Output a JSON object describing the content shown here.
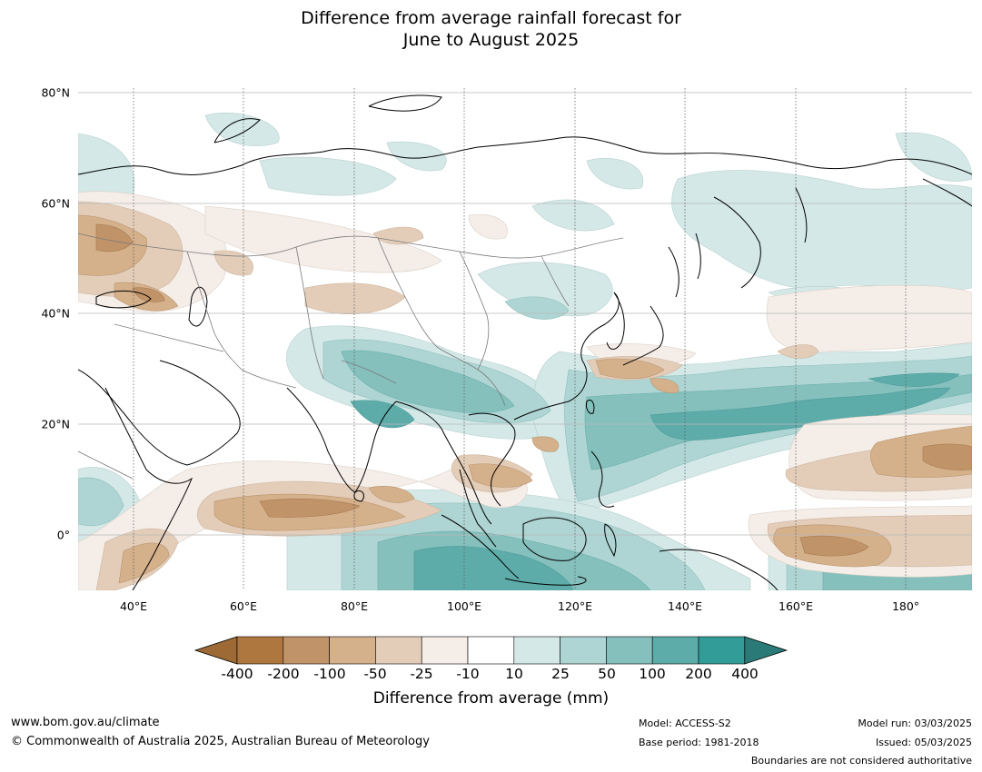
{
  "title": {
    "line1": "Difference from average rainfall forecast for",
    "line2": "June to August 2025"
  },
  "map": {
    "lat_labels": [
      "80°N",
      "60°N",
      "40°N",
      "20°N",
      "0°"
    ],
    "lon_labels": [
      "40°E",
      "60°E",
      "80°E",
      "100°E",
      "120°E",
      "140°E",
      "160°E",
      "180°"
    ],
    "extent_lon": [
      30,
      192
    ],
    "extent_lat": [
      -10,
      81
    ]
  },
  "colorbar": {
    "ticks": [
      "-400",
      "-200",
      "-100",
      "-50",
      "-25",
      "-10",
      "10",
      "25",
      "50",
      "100",
      "200",
      "400"
    ],
    "colors": [
      "#9d6a36",
      "#ae773f",
      "#c19368",
      "#d4b08b",
      "#e3cdb9",
      "#f4ede8",
      "#ffffff",
      "#d3e8e7",
      "#aed5d3",
      "#85c0bd",
      "#5eacaa",
      "#329c98",
      "#2a7b77"
    ],
    "label": "Difference from average (mm)"
  },
  "footer": {
    "website": "www.bom.gov.au/climate",
    "copyright": "© Commonwealth of Australia 2025, Australian Bureau of Meteorology",
    "model": "Model: ACCESS-S2",
    "base_period": "Base period: 1981-2018",
    "model_run": "Model run: 03/03/2025",
    "issued": "Issued: 05/03/2025",
    "disclaimer": "Boundaries are not considered authoritative"
  }
}
